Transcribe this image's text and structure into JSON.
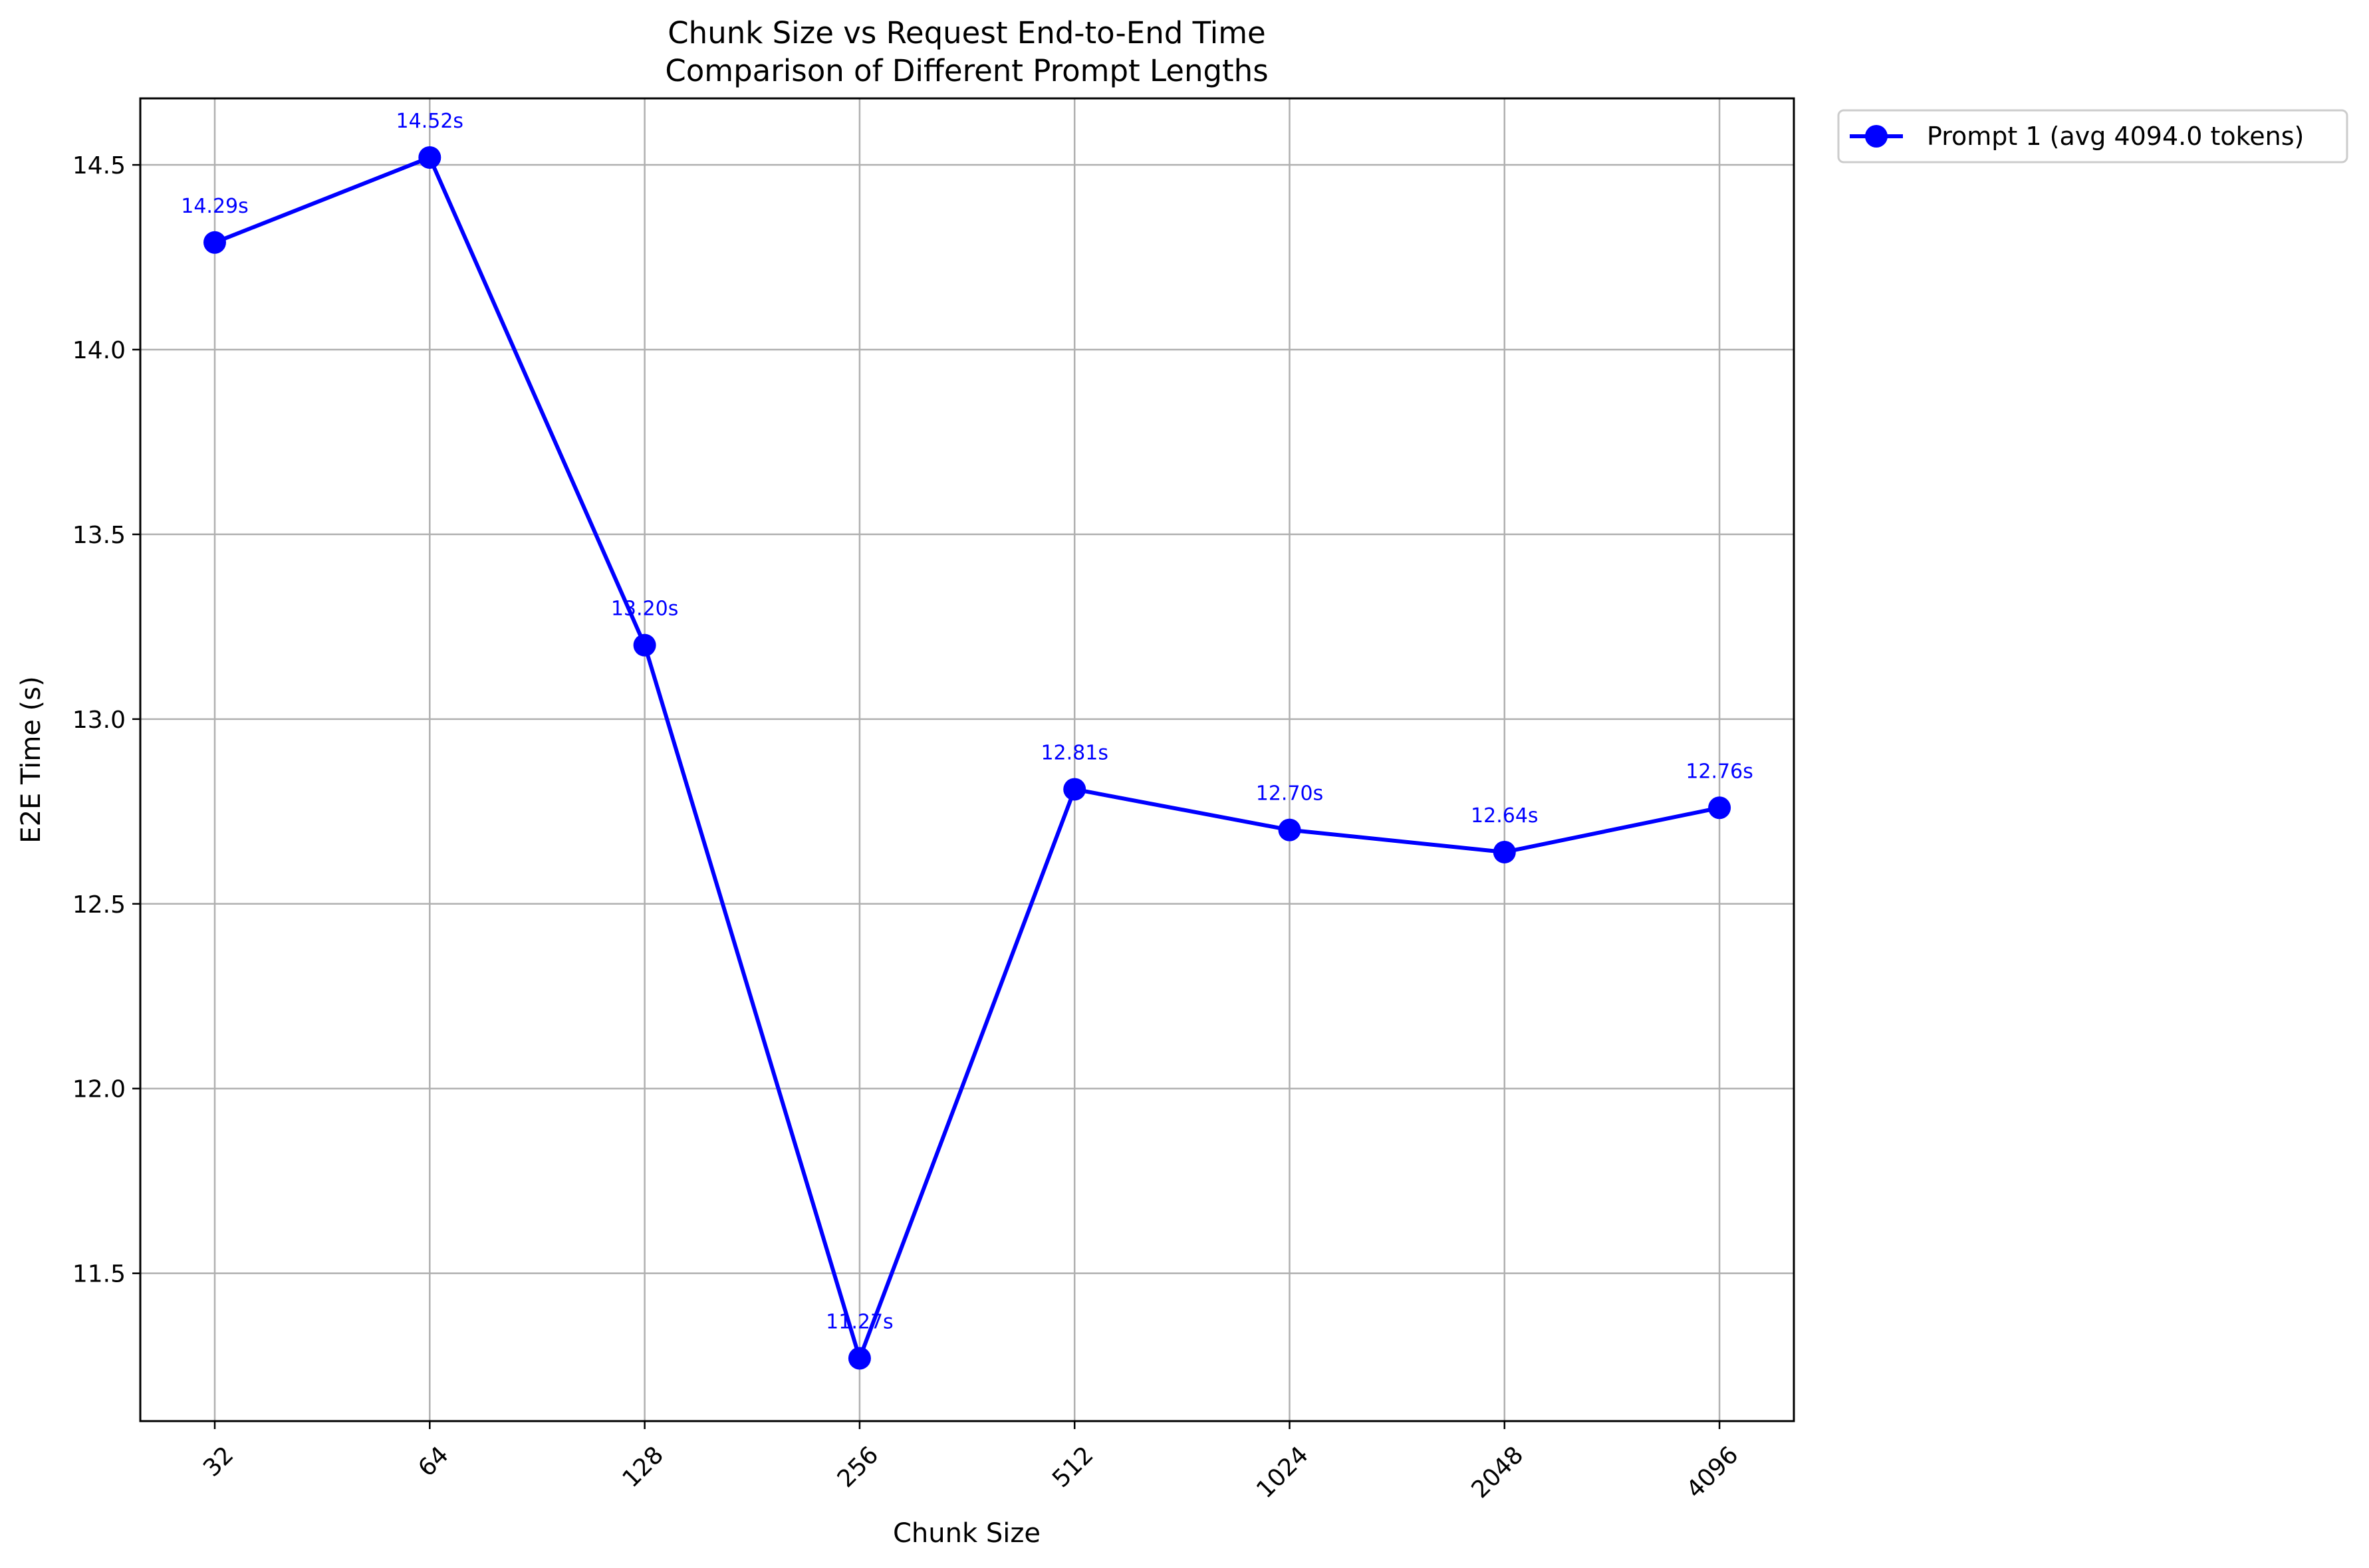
{
  "chart_data": {
    "type": "line",
    "title": "Chunk Size vs Request End-to-End Time",
    "subtitle": "Comparison of Different Prompt Lengths",
    "xlabel": "Chunk Size",
    "ylabel": "E2E Time (s)",
    "categories": [
      "32",
      "64",
      "128",
      "256",
      "512",
      "1024",
      "2048",
      "4096"
    ],
    "x_scale": "categorical",
    "ylim": [
      11.1,
      14.68
    ],
    "yticks": [
      11.5,
      12.0,
      12.5,
      13.0,
      13.5,
      14.0,
      14.5
    ],
    "ytick_labels": [
      "11.5",
      "12.0",
      "12.5",
      "13.0",
      "13.5",
      "14.0",
      "14.5"
    ],
    "grid": true,
    "legend_position": "outside-top-right",
    "series": [
      {
        "name": "Prompt 1 (avg 4094.0 tokens)",
        "color": "#0000ff",
        "marker": "circle",
        "values": [
          14.29,
          14.52,
          13.2,
          11.27,
          12.81,
          12.7,
          12.64,
          12.76
        ],
        "data_labels": [
          "14.29s",
          "14.52s",
          "13.20s",
          "11.27s",
          "12.81s",
          "12.70s",
          "12.64s",
          "12.76s"
        ]
      }
    ]
  }
}
